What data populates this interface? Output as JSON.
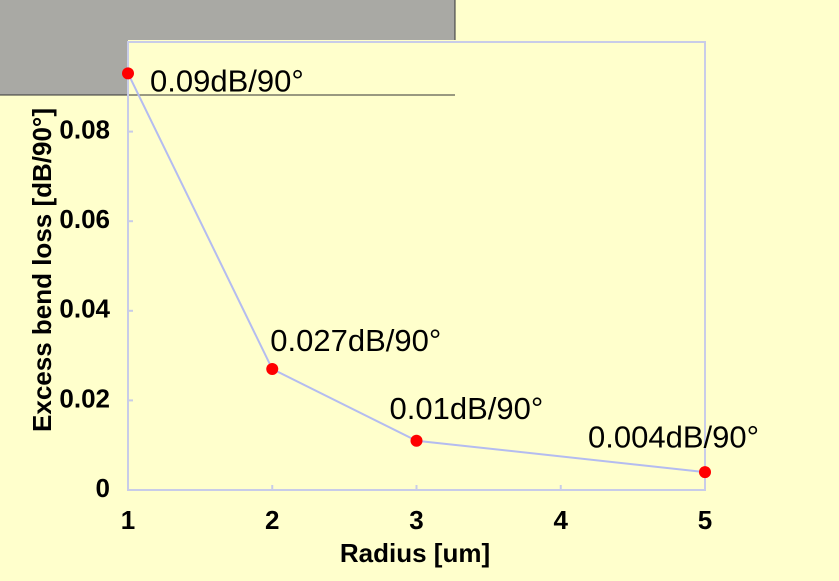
{
  "chart_data": {
    "type": "line",
    "x": [
      1,
      2,
      3,
      4,
      5
    ],
    "series": [
      {
        "name": null,
        "color": "#b4bcf0",
        "marker_color": "#ff0000",
        "x": [
          1,
          2,
          3,
          5
        ],
        "values": [
          0.093,
          0.027,
          0.011,
          0.004
        ],
        "value_labels": [
          "0.09dB/90°",
          "0.027dB/90°",
          "0.01dB/90°",
          "0.004dB/90°"
        ]
      }
    ],
    "xlabel": "Radius [um]",
    "ylabel": "Excess bend loss [dB/90°]",
    "xlim": [
      1,
      5
    ],
    "xticks": [
      1,
      2,
      3,
      4,
      5
    ],
    "ylim": [
      0,
      0.1
    ],
    "yticks": [
      0,
      0.02,
      0.04,
      0.06,
      0.08
    ],
    "grid": false
  }
}
